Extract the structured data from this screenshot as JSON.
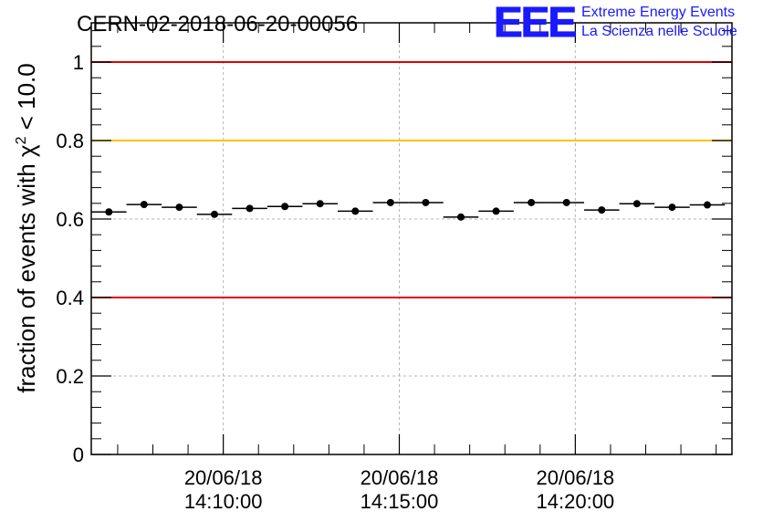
{
  "chart_data": {
    "type": "scatter",
    "title": "CERN-02-2018-06-20-00056",
    "xlabel": "",
    "ylabel_prefix": "fraction of events with ",
    "ylabel_symbol": "χ",
    "ylabel_sup": "2",
    "ylabel_suffix": " < 10.0",
    "ylim": [
      0,
      1.1
    ],
    "yticks": [
      0,
      0.2,
      0.4,
      0.6,
      0.8,
      1
    ],
    "ytick_labels": [
      "0",
      "0.2",
      "0.4",
      "0.6",
      "0.8",
      "1"
    ],
    "xlim_minutes": [
      6.25,
      24.45
    ],
    "xticks": [
      {
        "minute": 10,
        "date": "20/06/18",
        "time": "14:10:00"
      },
      {
        "minute": 15,
        "date": "20/06/18",
        "time": "14:15:00"
      },
      {
        "minute": 20,
        "date": "20/06/18",
        "time": "14:20:00"
      }
    ],
    "bin_width_minutes": 1,
    "grid": true,
    "series": [
      {
        "name": "fraction",
        "x_minutes": [
          6.75,
          7.75,
          8.75,
          9.75,
          10.75,
          11.75,
          12.75,
          13.75,
          14.75,
          15.75,
          16.75,
          17.75,
          18.75,
          19.75,
          20.75,
          21.75,
          22.75,
          23.75
        ],
        "values": [
          0.618,
          0.637,
          0.63,
          0.612,
          0.627,
          0.632,
          0.639,
          0.62,
          0.642,
          0.642,
          0.605,
          0.62,
          0.642,
          0.642,
          0.623,
          0.639,
          0.63,
          0.636
        ]
      }
    ],
    "reference_lines": [
      {
        "value": 1.0,
        "color": "#e00000"
      },
      {
        "value": 0.8,
        "color": "#ffc000"
      },
      {
        "value": 0.4,
        "color": "#e00000"
      }
    ]
  },
  "logo": {
    "letters": "EEE",
    "line1": "Extreme Energy Events",
    "line2": "La Scienza nelle Scuole",
    "color": "#1a1aff"
  }
}
